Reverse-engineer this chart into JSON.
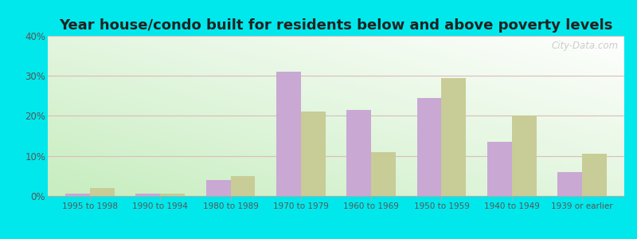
{
  "title": "Year house/condo built for residents below and above poverty levels",
  "categories": [
    "1995 to 1998",
    "1990 to 1994",
    "1980 to 1989",
    "1970 to 1979",
    "1960 to 1969",
    "1950 to 1959",
    "1940 to 1949",
    "1939 or earlier"
  ],
  "below_poverty": [
    0.5,
    0.5,
    4.0,
    31.0,
    21.5,
    24.5,
    13.5,
    6.0
  ],
  "above_poverty": [
    2.0,
    0.5,
    5.0,
    21.0,
    11.0,
    29.5,
    20.0,
    10.5
  ],
  "below_color": "#c9a8d4",
  "above_color": "#c8cc96",
  "outer_bg": "#00e8ec",
  "ylim": [
    0,
    40
  ],
  "yticks": [
    0,
    10,
    20,
    30,
    40
  ],
  "title_fontsize": 13,
  "bar_width": 0.35,
  "grid_color": "#ddbbbb",
  "watermark": "City-Data.com"
}
